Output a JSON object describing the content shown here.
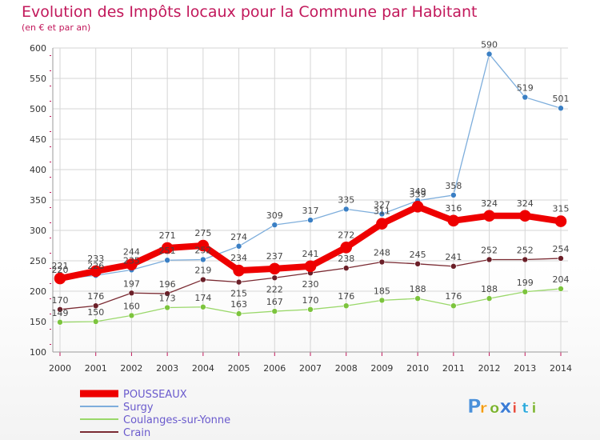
{
  "colors": {
    "title": "#c2185b",
    "grid": "#d6d6d6",
    "axis": "#999999",
    "ticks": "#c2185b",
    "legend_text": "#6a5acd"
  },
  "logo": {
    "letters": [
      "P",
      "r",
      "o",
      "x",
      "i",
      "t",
      "i"
    ],
    "colors": [
      "#4a90d9",
      "#f39c12",
      "#7bb32e",
      "#3a7bd5",
      "#e74c3c",
      "#2eaadc",
      "#7bb32e"
    ]
  },
  "chart_data": {
    "type": "line",
    "title": "Evolution des Impôts locaux pour la Commune par Habitant",
    "subtitle": "(en € et par an)",
    "xlabel": "",
    "ylabel": "",
    "ylim": [
      100,
      600
    ],
    "yticks": [
      100,
      150,
      200,
      250,
      300,
      350,
      400,
      450,
      500,
      550,
      600
    ],
    "ytick_labels": [
      "100",
      "150",
      "200",
      "250",
      "300",
      "350",
      "400",
      "450",
      "500",
      "550",
      "600"
    ],
    "categories": [
      "2000",
      "2001",
      "2002",
      "2003",
      "2004",
      "2005",
      "2006",
      "2007",
      "2008",
      "2009",
      "2010",
      "2011",
      "2012",
      "2013",
      "2014"
    ],
    "grid": true,
    "legend_position": "bottom-left",
    "series": [
      {
        "name": "Crain",
        "color": "#7a2a32",
        "marker_color": "#6b1f28",
        "width": 1.3,
        "marker": 3.5,
        "values": [
          170,
          176,
          197,
          196,
          219,
          215,
          222,
          230,
          238,
          248,
          245,
          241,
          252,
          252,
          254
        ],
        "labels": [
          "170",
          "176",
          "197",
          "196",
          "219",
          "215",
          "222",
          "230",
          "238",
          "248",
          "245",
          "241",
          "252",
          "252",
          "254"
        ],
        "label_positions": [
          "above",
          "above",
          "above",
          "above",
          "above",
          "below",
          "below",
          "below",
          "above",
          "above",
          "above",
          "above",
          "above",
          "above",
          "above"
        ]
      },
      {
        "name": "Coulanges-sur-Yonne",
        "color": "#9ad86a",
        "marker_color": "#7cc43d",
        "width": 1.3,
        "marker": 3.5,
        "values": [
          149,
          150,
          160,
          173,
          174,
          163,
          167,
          170,
          176,
          185,
          188,
          176,
          188,
          199,
          204
        ],
        "labels": [
          "149",
          "150",
          "160",
          "173",
          "174",
          "163",
          "167",
          "170",
          "176",
          "185",
          "188",
          "176",
          "188",
          "199",
          "204"
        ],
        "label_positions": [
          "above",
          "above",
          "above",
          "above",
          "above",
          "above",
          "above",
          "above",
          "above",
          "above",
          "above",
          "above",
          "above",
          "above",
          "above"
        ]
      },
      {
        "name": "Surgy",
        "color": "#7eaedc",
        "marker_color": "#3a7fc4",
        "width": 1.3,
        "marker": 3.5,
        "values": [
          220,
          226,
          235,
          251,
          252,
          274,
          309,
          317,
          335,
          327,
          349,
          358,
          590,
          519,
          501
        ],
        "labels": [
          "220",
          "226",
          "235",
          "251",
          "252",
          "274",
          "309",
          "317",
          "335",
          "327",
          "349",
          "358",
          "590",
          "519",
          "501"
        ],
        "label_positions": [
          "above",
          "above",
          "above",
          "above",
          "above",
          "above",
          "above",
          "above",
          "above",
          "above",
          "above",
          "above",
          "above",
          "above",
          "above"
        ]
      },
      {
        "name": "POUSSEAUX",
        "color": "#ee0000",
        "marker_color": "#ee0000",
        "width": 8,
        "marker": 7,
        "values": [
          221,
          233,
          244,
          271,
          275,
          234,
          237,
          241,
          272,
          311,
          339,
          316,
          324,
          324,
          315
        ],
        "labels": [
          "221",
          "233",
          "244",
          "271",
          "275",
          "234",
          "237",
          "241",
          "272",
          "311",
          "339",
          "316",
          "324",
          "324",
          "315"
        ],
        "label_positions": [
          "above",
          "above",
          "above",
          "above",
          "above",
          "above",
          "above",
          "above",
          "above",
          "above",
          "above",
          "above",
          "above",
          "above",
          "above"
        ]
      }
    ],
    "legend": [
      "POUSSEAUX",
      "Surgy",
      "Coulanges-sur-Yonne",
      "Crain"
    ]
  }
}
